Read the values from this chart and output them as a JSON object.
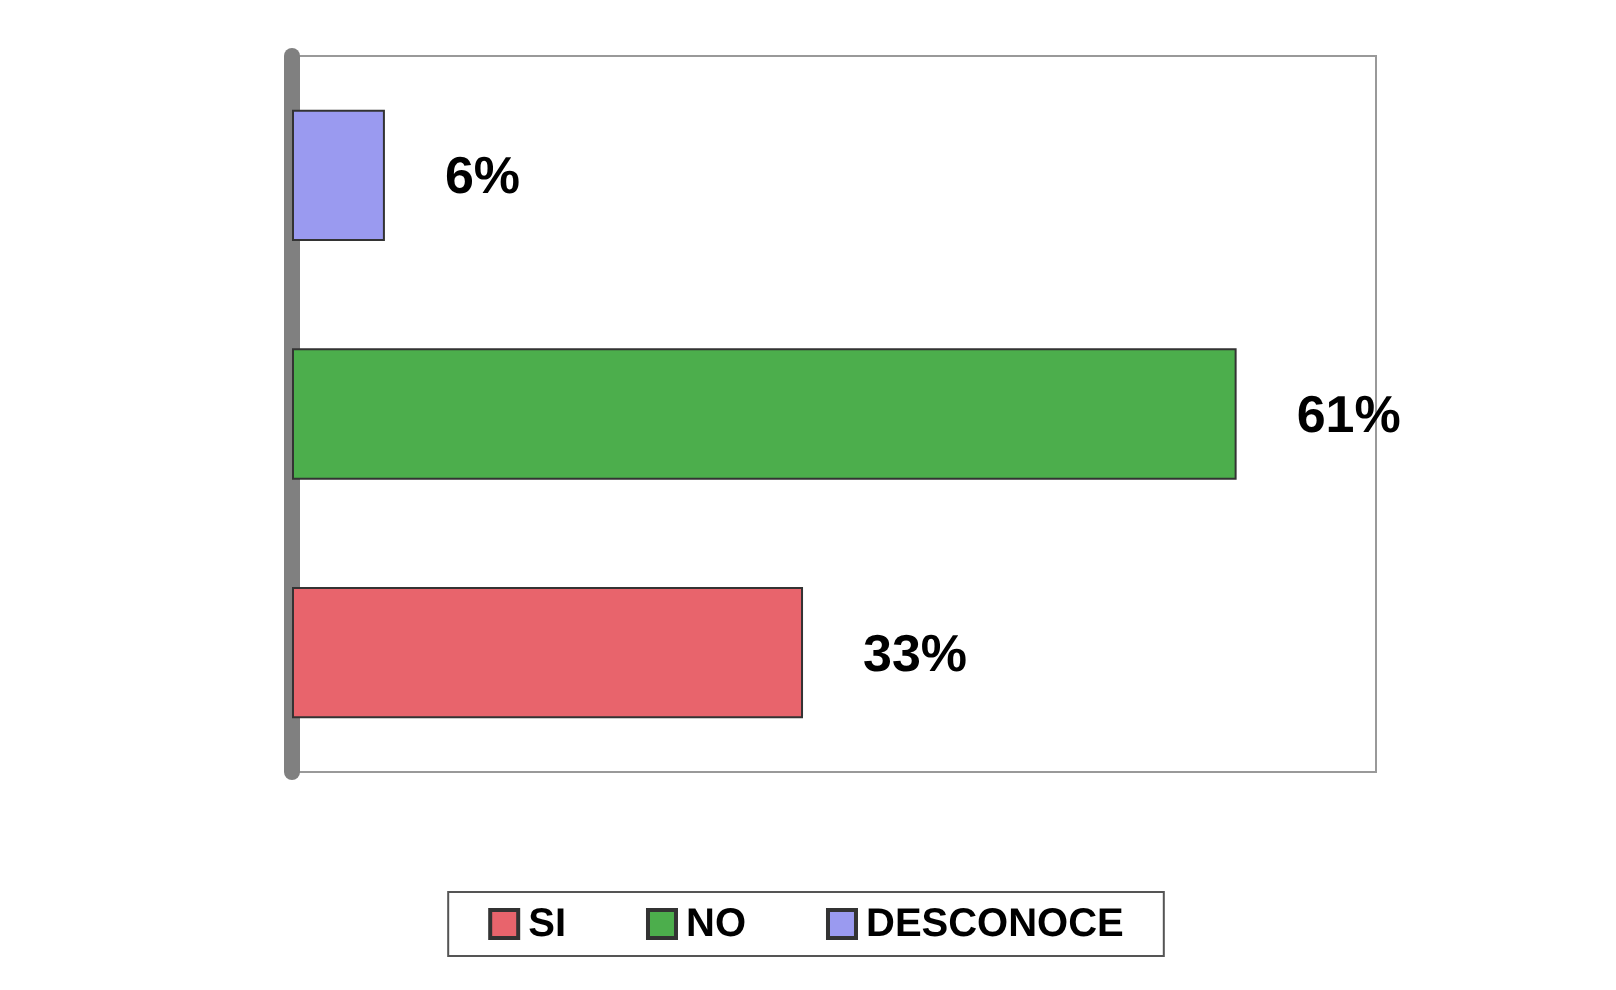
{
  "chart_data": {
    "type": "bar",
    "orientation": "horizontal",
    "categories": [
      null,
      null,
      null
    ],
    "stacked": true,
    "series": [
      {
        "name": "SI",
        "color": "#e8646c",
        "values": [
          null,
          null,
          33
        ],
        "value_labels": [
          null,
          null,
          "33%"
        ]
      },
      {
        "name": "NO",
        "color": "#4cae4c",
        "values": [
          null,
          61,
          null
        ],
        "value_labels": [
          null,
          "61%",
          null
        ]
      },
      {
        "name": "DESCONOCE",
        "color": "#9a9af0",
        "values": [
          6,
          null,
          null
        ],
        "value_labels": [
          "6%",
          null,
          null
        ]
      }
    ],
    "legend": "bottom",
    "grid": false
  }
}
